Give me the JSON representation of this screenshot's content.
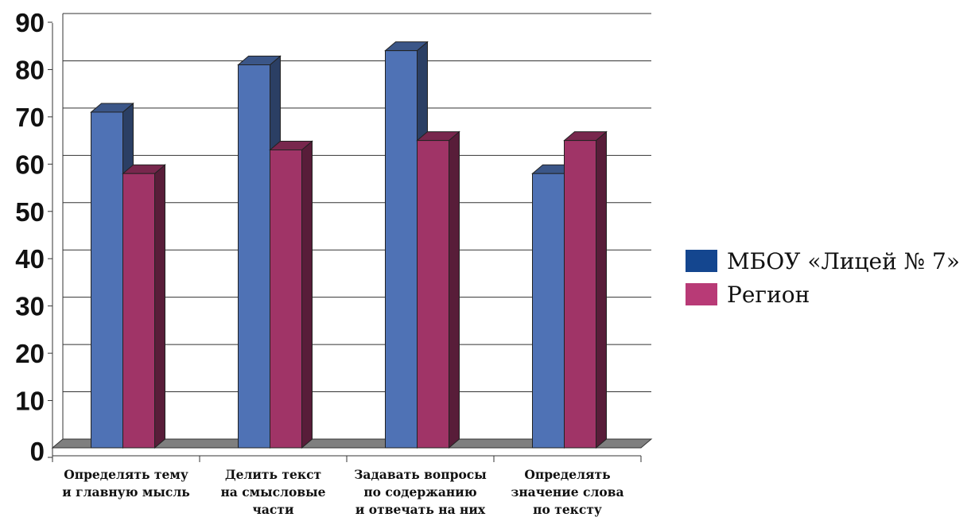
{
  "chart_data": {
    "type": "bar",
    "categories": [
      [
        "Определять тему",
        "и главную мысль"
      ],
      [
        "Делить текст",
        "на смысловые",
        "части"
      ],
      [
        "Задавать вопросы",
        "по содержанию",
        "и отвечать на них"
      ],
      [
        "Определять",
        "значение слова",
        "по тексту"
      ]
    ],
    "series": [
      {
        "name": "МБОУ «Лицей № 7»",
        "values": [
          71,
          81,
          84,
          58
        ],
        "color": "#4f72b5"
      },
      {
        "name": "Регион",
        "values": [
          58,
          63,
          65,
          65
        ],
        "color": "#a03467"
      }
    ],
    "ylim": [
      0,
      90
    ],
    "yticks": [
      "0",
      "10",
      "20",
      "30",
      "40",
      "50",
      "60",
      "70",
      "80",
      "90"
    ],
    "grid": true,
    "legend": "right",
    "three_d": true
  }
}
